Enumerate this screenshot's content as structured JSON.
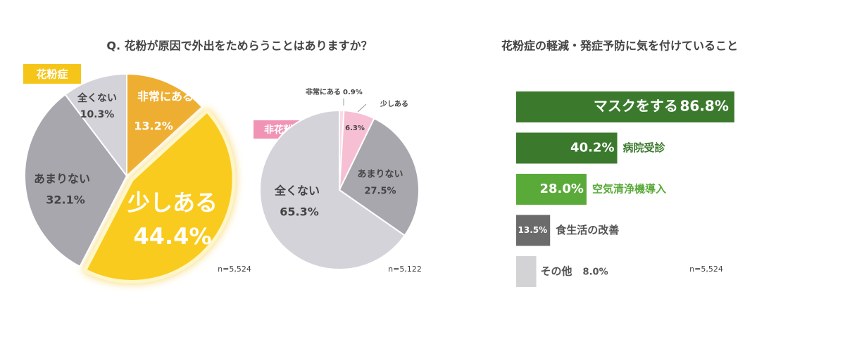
{
  "chart_data": [
    {
      "type": "pie",
      "title": "Q. 花粉が原因で外出をためらうことはありますか？",
      "subtitle": "花粉症",
      "note": "n=5,524",
      "categories": [
        "非常にある",
        "少しある",
        "あまりない",
        "全くない"
      ],
      "values": [
        13.2,
        44.4,
        32.1,
        10.3
      ],
      "value_labels": [
        "13.2%",
        "44.4%",
        "32.1%",
        "10.3%"
      ],
      "colors": [
        "#eeae32",
        "#f9cb1e",
        "#a9a7ae",
        "#d4d3d9"
      ]
    },
    {
      "type": "pie",
      "subtitle": "非花粉症",
      "note": "n=5,122",
      "categories": [
        "非常にある",
        "少しある",
        "あまりない",
        "全くない"
      ],
      "values": [
        0.9,
        6.3,
        27.5,
        65.3
      ],
      "value_labels": [
        "0.9%",
        "6.3%",
        "27.5%",
        "65.3%"
      ],
      "colors": [
        "#f9dbe5",
        "#f6bfd3",
        "#a9a7ae",
        "#d4d3d9"
      ]
    },
    {
      "type": "bar",
      "title": "花粉症の軽減・発症予防に気を付けていること",
      "note": "n=5,524",
      "categories": [
        "マスクをする",
        "病院受診",
        "空気清浄機導入",
        "食生活の改善",
        "その他"
      ],
      "values": [
        86.8,
        40.2,
        28.0,
        13.5,
        8.0
      ],
      "value_labels": [
        "86.8%",
        "40.2%",
        "28.0%",
        "13.5%",
        "8.0%"
      ],
      "colors": [
        "#3b7a2d",
        "#3b7a2d",
        "#5aaa3a",
        "#6b6b6b",
        "#d3d3d6"
      ]
    }
  ]
}
